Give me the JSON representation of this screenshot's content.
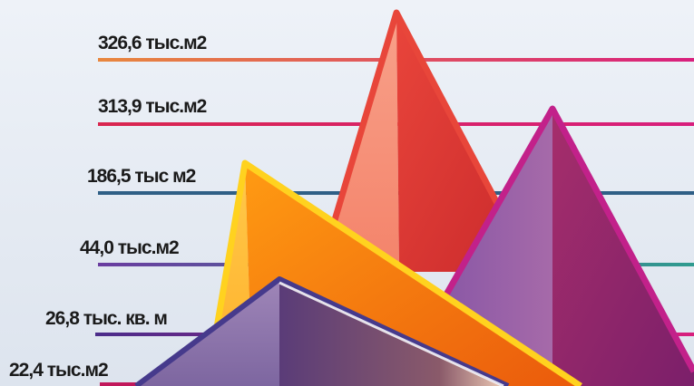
{
  "chart_data": {
    "type": "area",
    "title": "",
    "levels": [
      {
        "label": "326,6 тыс.м2",
        "value": 326.6,
        "color": "#e8873e",
        "line_end_color": "#d81f7d"
      },
      {
        "label": "313,9 тыс.м2",
        "value": 313.9,
        "color": "#d9264f",
        "line_end_color": "#d81f7d"
      },
      {
        "label": "186,5 тыс м2",
        "value": 186.5,
        "color": "#2f5f86",
        "line_end_color": "#2f5f86"
      },
      {
        "label": "44,0 тыс.м2",
        "value": 44.0,
        "color": "#6a3ca0",
        "line_end_color": "#2f9b8f"
      },
      {
        "label": "26,8 тыс. кв. м",
        "value": 26.8,
        "color": "#4b2c8a",
        "line_end_color": "#d81f7d"
      },
      {
        "label": "22,4 тыс.м2",
        "value": 22.4,
        "color": "#c2185b",
        "line_end_color": "#c2185b"
      }
    ],
    "peaks": [
      {
        "name": "red",
        "value": 326.6,
        "colors": [
          "#f4836a",
          "#e23b33"
        ],
        "stroke": "#e8463a"
      },
      {
        "name": "magenta",
        "value": 313.9,
        "colors": [
          "#9a5ea8",
          "#a3205e"
        ],
        "stroke": "#c2218a"
      },
      {
        "name": "orange",
        "value": 186.5,
        "colors": [
          "#ffb23a",
          "#f07a10"
        ],
        "stroke": "#ffd21f"
      },
      {
        "name": "navy",
        "value": 44.0,
        "colors": [
          "#8a6aa8",
          "#5a3c78"
        ],
        "stroke": "#463a8c"
      }
    ]
  }
}
